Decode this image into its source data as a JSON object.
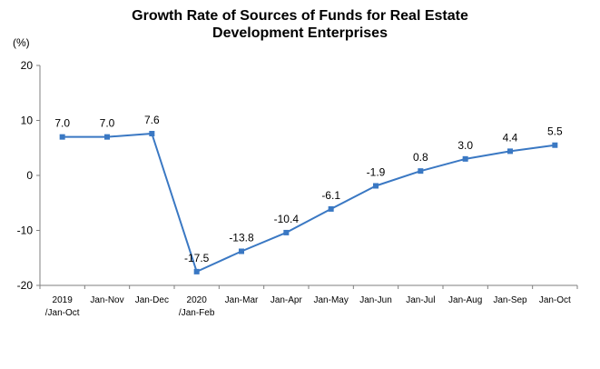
{
  "chart_data": {
    "type": "line",
    "title_lines": [
      "Growth Rate of Sources of Funds for Real Estate",
      "Development Enterprises"
    ],
    "unit_label": "(%)",
    "categories": [
      [
        "2019",
        "/Jan-Oct"
      ],
      [
        "Jan-Nov"
      ],
      [
        "Jan-Dec"
      ],
      [
        "2020",
        "/Jan-Feb"
      ],
      [
        "Jan-Mar"
      ],
      [
        "Jan-Apr"
      ],
      [
        "Jan-May"
      ],
      [
        "Jan-Jun"
      ],
      [
        "Jan-Jul"
      ],
      [
        "Jan-Aug"
      ],
      [
        "Jan-Sep"
      ],
      [
        "Jan-Oct"
      ]
    ],
    "values": [
      7.0,
      7.0,
      7.6,
      -17.5,
      -13.8,
      -10.4,
      -6.1,
      -1.9,
      0.8,
      3.0,
      4.4,
      5.5
    ],
    "data_labels": [
      "7.0",
      "7.0",
      "7.6",
      "-17.5",
      "-13.8",
      "-10.4",
      "-6.1",
      "-1.9",
      "0.8",
      "3.0",
      "4.4",
      "5.5"
    ],
    "yticks": [
      20,
      10,
      0,
      -10,
      -20
    ],
    "ylim": [
      -20,
      20
    ],
    "grid": false,
    "line_color": "#3a78c3",
    "marker_color": "#3a78c3"
  }
}
